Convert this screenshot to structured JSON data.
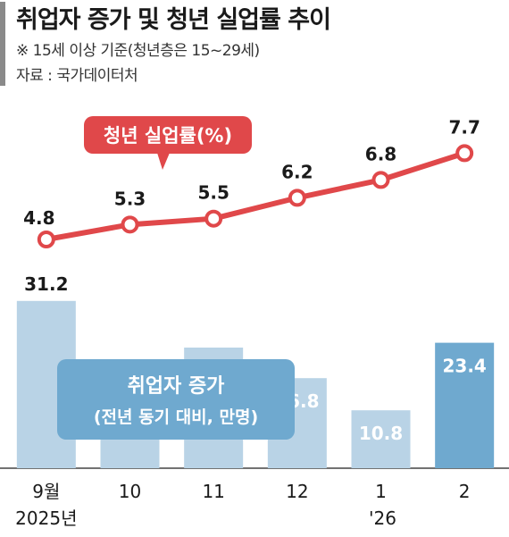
{
  "header": {
    "title": "취업자 증가 및 청년 실업률 추이",
    "note": "※ 15세 이상 기준(청년층은 15~29세)",
    "source": "자료 : 국가데이터처"
  },
  "chart_data": {
    "type": "bar",
    "categories": [
      "9월",
      "10",
      "11",
      "12",
      "1",
      "2"
    ],
    "year_labels": [
      "2025년",
      "",
      "",
      "",
      "'26",
      ""
    ],
    "series": [
      {
        "name": "취업자 증가",
        "sublabel": "(전년 동기 대비, 만명)",
        "type": "bar",
        "values": [
          31.2,
          19.3,
          22.5,
          16.8,
          10.8,
          23.4
        ],
        "color": "#b9d3e6",
        "highlight_color": "#6fa9cf"
      },
      {
        "name": "청년 실업률(%)",
        "type": "line",
        "values": [
          4.8,
          5.3,
          5.5,
          6.2,
          6.8,
          7.7
        ],
        "color": "#e0484a"
      }
    ],
    "highlight_index": 5
  }
}
